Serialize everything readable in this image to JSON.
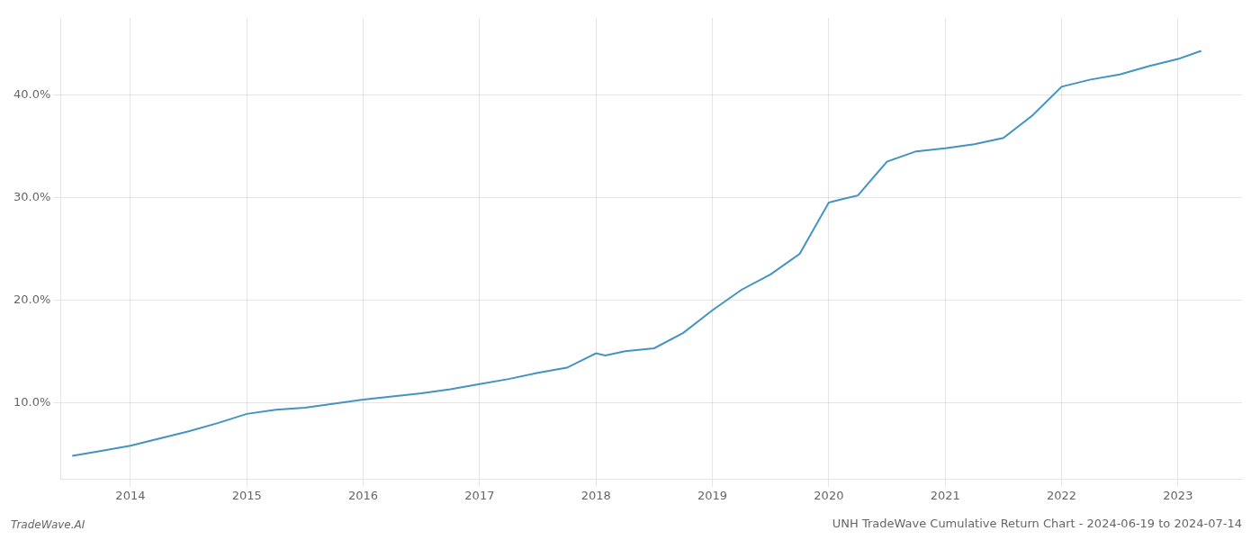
{
  "chart_data": {
    "type": "line",
    "title": "UNH TradeWave Cumulative Return Chart - 2024-06-19 to 2024-07-14",
    "annotations": [
      "TradeWave.AI"
    ],
    "x": [
      2013.5,
      2013.75,
      2014.0,
      2014.25,
      2014.5,
      2014.75,
      2015.0,
      2015.25,
      2015.5,
      2015.75,
      2016.0,
      2016.25,
      2016.5,
      2016.75,
      2017.0,
      2017.25,
      2017.5,
      2017.75,
      2018.0,
      2018.08,
      2018.25,
      2018.5,
      2018.75,
      2019.0,
      2019.25,
      2019.5,
      2019.75,
      2020.0,
      2020.1,
      2020.25,
      2020.5,
      2020.75,
      2021.0,
      2021.25,
      2021.5,
      2021.75,
      2022.0,
      2022.25,
      2022.5,
      2022.75,
      2023.0,
      2023.2
    ],
    "values": [
      4.8,
      5.3,
      5.8,
      6.5,
      7.2,
      8.0,
      8.9,
      9.3,
      9.5,
      9.9,
      10.3,
      10.6,
      10.9,
      11.3,
      11.8,
      12.3,
      12.9,
      13.4,
      14.8,
      14.6,
      15.0,
      15.3,
      16.8,
      19.0,
      21.0,
      22.5,
      24.5,
      29.5,
      29.8,
      30.2,
      33.5,
      34.5,
      34.8,
      35.2,
      35.8,
      38.0,
      40.8,
      41.5,
      42.0,
      42.8,
      43.5,
      44.3
    ],
    "color": "#4393c3",
    "xlim": [
      2013.4,
      2023.55
    ],
    "xticks": [
      2014,
      2015,
      2016,
      2017,
      2018,
      2019,
      2020,
      2021,
      2022,
      2023
    ],
    "ylim": [
      2.5,
      47.5
    ],
    "yticks": [
      {
        "value": 10.0,
        "label": "10.0%"
      },
      {
        "value": 20.0,
        "label": "20.0%"
      },
      {
        "value": 30.0,
        "label": "30.0%"
      },
      {
        "value": 40.0,
        "label": "40.0%"
      }
    ],
    "grid": true
  }
}
